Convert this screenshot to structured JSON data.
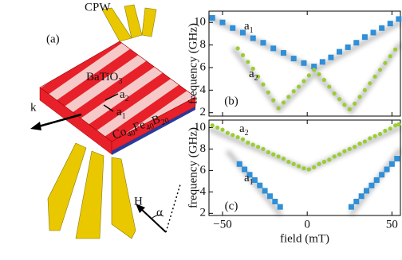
{
  "figure": {
    "panel_a": "(a)",
    "cpw": "CPW",
    "batio": {
      "main": "BaTiO",
      "sub": "3"
    },
    "a2": {
      "main": "a",
      "sub": "2"
    },
    "a1": {
      "main": "a",
      "sub": "1"
    },
    "k": "k",
    "cofeb": [
      "Co",
      "40",
      "Fe",
      "40",
      "B",
      "20"
    ],
    "H": "H",
    "alpha": "α"
  },
  "chart_data": [
    {
      "type": "scatter",
      "panel": "(b)",
      "ylabel": "frequency (GHz)",
      "xlim": [
        -58,
        55
      ],
      "xticks": [
        {
          "value": -50,
          "label": "−50"
        },
        0,
        50
      ],
      "ylim": [
        1.7,
        11
      ],
      "yticks": [
        2,
        4,
        6,
        8,
        10
      ],
      "annotations": [
        {
          "main": "a",
          "sub": "1"
        },
        {
          "main": "a",
          "sub": "2"
        }
      ],
      "series": [
        {
          "color": "#2f8fd8",
          "marker": "square",
          "x": [
            -56,
            -50,
            -44,
            -38,
            -32,
            -26,
            -20,
            -14,
            -8,
            -2,
            4,
            9,
            14,
            19,
            24,
            29,
            34,
            39,
            44,
            49,
            54
          ],
          "values": [
            10.4,
            10.0,
            9.5,
            9.1,
            8.6,
            8.2,
            7.7,
            7.3,
            6.8,
            6.4,
            6.1,
            6.5,
            6.9,
            7.4,
            7.8,
            8.2,
            8.7,
            9.1,
            9.5,
            9.9,
            10.3
          ]
        },
        {
          "color": "#9acd32",
          "marker": "circle",
          "x": [
            -41,
            -38,
            -35,
            -32,
            -29,
            -26,
            -23,
            -20,
            -17,
            -14,
            -11,
            -8,
            -5,
            -2,
            1,
            4,
            7,
            10,
            13,
            16,
            19,
            22,
            25,
            28,
            31,
            34,
            37,
            40,
            43,
            46,
            49,
            52
          ],
          "values": [
            7.7,
            7.1,
            6.5,
            5.9,
            5.2,
            4.5,
            3.8,
            3.1,
            2.4,
            2.9,
            3.4,
            3.9,
            4.3,
            4.8,
            5.3,
            5.8,
            5.4,
            4.9,
            4.3,
            3.7,
            3.2,
            2.7,
            2.3,
            2.8,
            3.4,
            4.0,
            4.6,
            5.2,
            5.8,
            6.4,
            7.0,
            7.6
          ]
        }
      ]
    },
    {
      "type": "scatter",
      "panel": "(c)",
      "ylabel": "frequency (GHz)",
      "xlabel": "field (mT)",
      "xlim": [
        -58,
        55
      ],
      "xticks": [
        {
          "value": -50,
          "label": "−50"
        },
        0,
        50
      ],
      "ylim": [
        1.8,
        10.7
      ],
      "yticks": [
        2,
        4,
        6,
        8,
        10
      ],
      "annotations": [
        {
          "main": "a",
          "sub": "2"
        },
        {
          "main": "a",
          "sub": "1"
        }
      ],
      "series": [
        {
          "color": "#9acd32",
          "marker": "circle",
          "x": [
            -56,
            -53,
            -50,
            -47,
            -44,
            -41,
            -38,
            -35,
            -32,
            -29,
            -26,
            -23,
            -20,
            -17,
            -14,
            -11,
            -8,
            -5,
            -2,
            1,
            4,
            7,
            10,
            13,
            16,
            19,
            22,
            25,
            28,
            31,
            34,
            37,
            40,
            43,
            46,
            49,
            52,
            54
          ],
          "values": [
            10.2,
            10.0,
            9.8,
            9.5,
            9.3,
            9.1,
            8.9,
            8.6,
            8.4,
            8.2,
            8.0,
            7.7,
            7.5,
            7.3,
            7.1,
            6.8,
            6.6,
            6.4,
            6.2,
            6.1,
            6.3,
            6.6,
            6.8,
            7.0,
            7.3,
            7.5,
            7.8,
            8.0,
            8.2,
            8.5,
            8.7,
            9.0,
            9.2,
            9.4,
            9.7,
            9.9,
            10.2,
            10.3
          ]
        },
        {
          "color": "#2f8fd8",
          "marker": "square",
          "x": [
            -40,
            -37,
            -34,
            -31,
            -28,
            -25,
            -22,
            -19,
            -16,
            26,
            29,
            32,
            35,
            38,
            41,
            44,
            47,
            50,
            53
          ],
          "values": [
            6.6,
            6.1,
            5.6,
            5.1,
            4.6,
            4.1,
            3.6,
            3.1,
            2.6,
            2.6,
            3.1,
            3.6,
            4.1,
            4.6,
            5.1,
            5.6,
            6.1,
            6.6,
            7.1
          ]
        }
      ]
    }
  ]
}
